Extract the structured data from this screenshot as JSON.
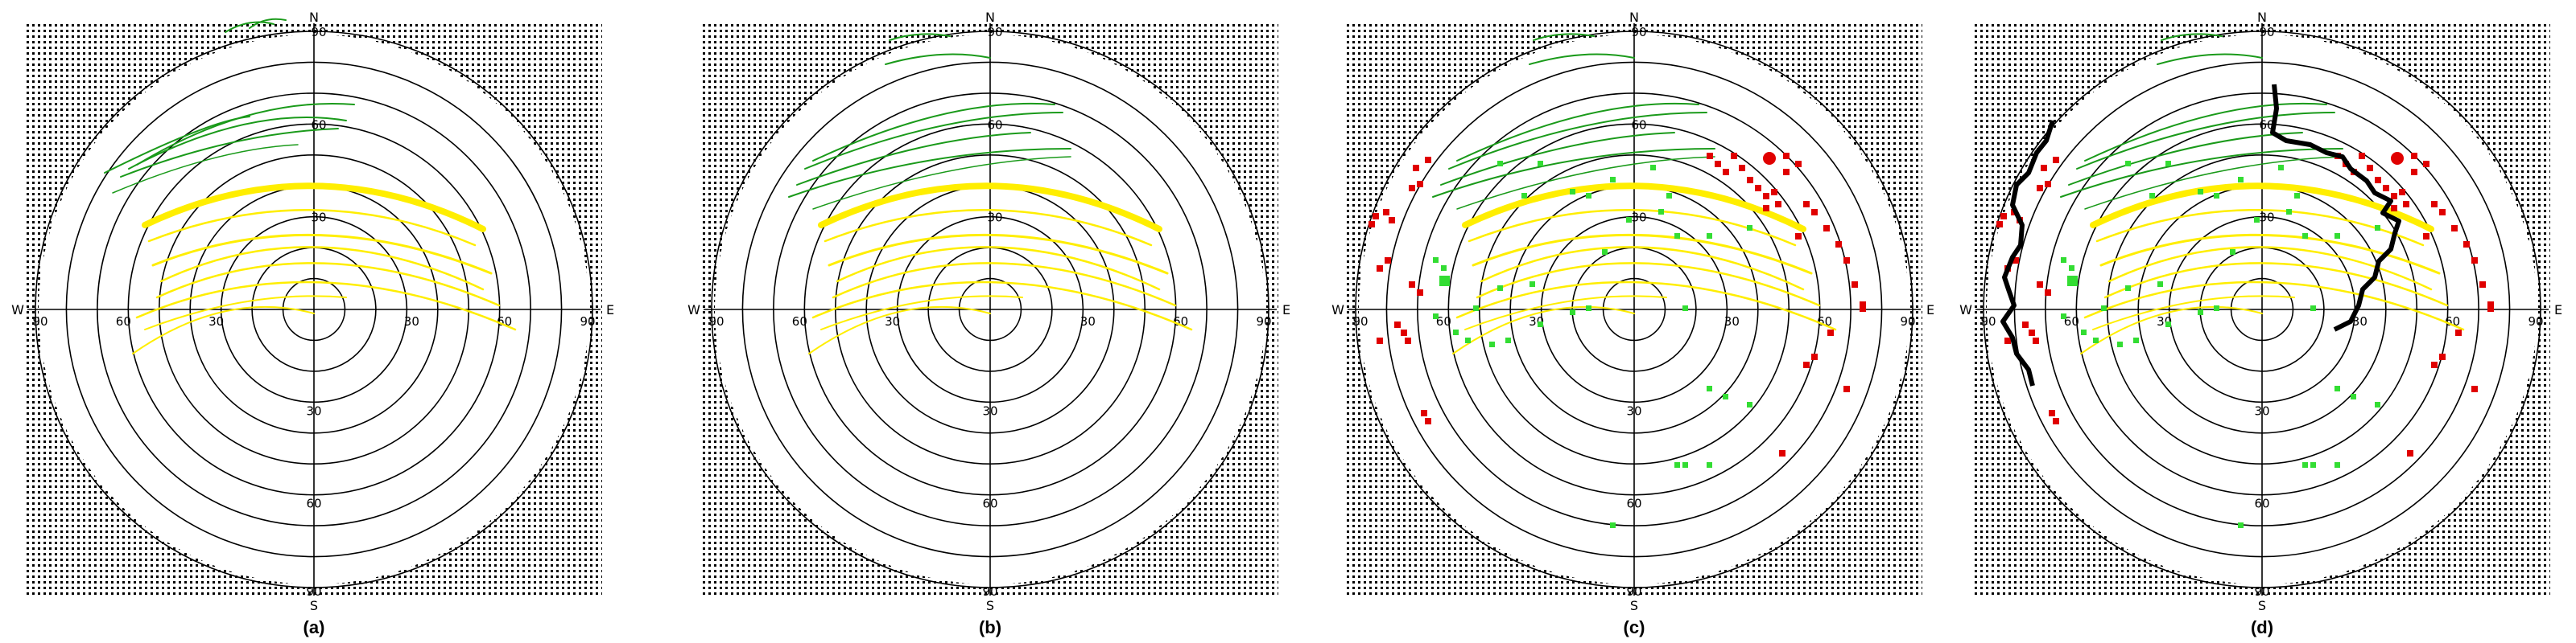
{
  "compass": {
    "north": "N",
    "south": "S",
    "east": "E",
    "west": "W"
  },
  "ring_labels": {
    "horizon": "90",
    "r60": "60",
    "r30": "30"
  },
  "colors": {
    "background": "#ffffff",
    "mask_dots": "#000000",
    "grid": "#000000",
    "green_tracks": "#1a9a1a",
    "yellow_tracks": "#ffee00",
    "red_points": "#e00000",
    "green_points": "#33dd33",
    "black_boundary": "#000000"
  },
  "panels": [
    {
      "id": "a",
      "label": "(a)",
      "layers": [
        "mask",
        "tracks"
      ]
    },
    {
      "id": "b",
      "label": "(b)",
      "layers": [
        "mask",
        "tracks"
      ]
    },
    {
      "id": "c",
      "label": "(c)",
      "layers": [
        "mask",
        "tracks",
        "points"
      ]
    },
    {
      "id": "d",
      "label": "(d)",
      "layers": [
        "mask",
        "tracks",
        "points",
        "boundary"
      ]
    }
  ]
}
